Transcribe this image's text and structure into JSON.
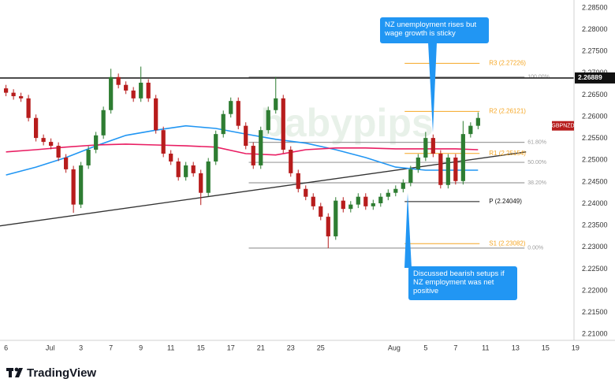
{
  "chart_data": {
    "type": "candlestick",
    "symbol": "GBPNZD",
    "watermark": "babypips",
    "footer": "TradingView",
    "up_color": "#2e7d32",
    "down_color": "#b71c1c",
    "x": [
      0,
      0.5,
      1,
      1.5,
      2,
      2.5,
      3,
      3.5,
      4,
      4.5,
      5,
      5.5,
      6,
      6.5,
      7,
      7.5,
      8,
      8.5,
      9,
      9.5,
      10,
      10.5,
      11,
      11.5,
      12,
      12.5,
      13,
      13.5,
      14,
      14.5,
      15,
      15.5,
      16,
      16.5,
      17,
      17.5,
      18,
      18.5,
      19,
      19.5,
      20,
      20.5,
      21,
      21.5,
      22,
      22.5,
      23,
      23.5,
      24,
      24.5,
      25,
      25.5,
      26,
      26.5,
      27,
      27.5,
      28,
      28.5,
      29,
      29.5,
      30,
      30.5,
      31,
      31.5
    ],
    "open": [
      2.2665,
      2.2655,
      2.2647,
      2.2642,
      2.2597,
      2.2551,
      2.2542,
      2.2533,
      2.2506,
      2.2479,
      2.2398,
      2.2488,
      2.2524,
      2.2557,
      2.2615,
      2.2691,
      2.2673,
      2.266,
      2.2642,
      2.2678,
      2.2642,
      2.2569,
      2.2515,
      2.2497,
      2.2461,
      2.2488,
      2.247,
      2.2425,
      2.2497,
      2.256,
      2.2606,
      2.2636,
      2.2579,
      2.2533,
      2.2488,
      2.2569,
      2.2615,
      2.2642,
      2.2524,
      2.247,
      2.2434,
      2.2416,
      2.2394,
      2.237,
      2.2325,
      2.2407,
      2.2388,
      2.2398,
      2.2416,
      2.2394,
      2.2401,
      2.2416,
      2.2425,
      2.2434,
      2.2448,
      2.2479,
      2.2506,
      2.2551,
      2.2515,
      2.2443,
      2.2506,
      2.2452,
      2.256,
      2.2579
    ],
    "high": [
      2.2673,
      2.2663,
      2.2655,
      2.265,
      2.2605,
      2.2559,
      2.255,
      2.2541,
      2.2514,
      2.2487,
      2.2496,
      2.2532,
      2.2565,
      2.2623,
      2.271,
      2.2699,
      2.2681,
      2.2668,
      2.2715,
      2.2686,
      2.265,
      2.2577,
      2.2523,
      2.2505,
      2.2496,
      2.2496,
      2.2478,
      2.2505,
      2.2568,
      2.2614,
      2.2644,
      2.2644,
      2.2587,
      2.2541,
      2.2577,
      2.2623,
      2.2691,
      2.265,
      2.2532,
      2.2478,
      2.2442,
      2.2424,
      2.2402,
      2.2378,
      2.2415,
      2.2415,
      2.2406,
      2.2424,
      2.2424,
      2.2409,
      2.2424,
      2.2433,
      2.2442,
      2.2456,
      2.2487,
      2.2514,
      2.2565,
      2.2559,
      2.2523,
      2.2514,
      2.2514,
      2.259,
      2.2587,
      2.261
    ],
    "low": [
      2.2647,
      2.2639,
      2.2634,
      2.2589,
      2.2543,
      2.2534,
      2.2525,
      2.2498,
      2.2471,
      2.2379,
      2.239,
      2.248,
      2.2516,
      2.2549,
      2.2607,
      2.2665,
      2.2652,
      2.2634,
      2.2634,
      2.2634,
      2.2561,
      2.2507,
      2.2489,
      2.2453,
      2.2453,
      2.2462,
      2.2397,
      2.2417,
      2.2489,
      2.2552,
      2.2598,
      2.2571,
      2.2525,
      2.248,
      2.248,
      2.2561,
      2.2607,
      2.2516,
      2.2462,
      2.2426,
      2.2408,
      2.2386,
      2.2362,
      2.2298,
      2.2317,
      2.238,
      2.238,
      2.239,
      2.2386,
      2.2386,
      2.2393,
      2.2408,
      2.2417,
      2.2426,
      2.244,
      2.2471,
      2.2498,
      2.2507,
      2.2435,
      2.2435,
      2.2444,
      2.2444,
      2.2552,
      2.2571
    ],
    "close": [
      2.2655,
      2.2647,
      2.2642,
      2.2597,
      2.2551,
      2.2542,
      2.2533,
      2.2506,
      2.2479,
      2.2398,
      2.2488,
      2.2524,
      2.2557,
      2.2615,
      2.2691,
      2.2673,
      2.266,
      2.2642,
      2.2678,
      2.2642,
      2.2569,
      2.2515,
      2.2497,
      2.2461,
      2.2488,
      2.247,
      2.2425,
      2.2497,
      2.256,
      2.2606,
      2.2636,
      2.2579,
      2.2533,
      2.2488,
      2.2569,
      2.2615,
      2.2642,
      2.2524,
      2.247,
      2.2434,
      2.2416,
      2.2394,
      2.237,
      2.2325,
      2.2407,
      2.2388,
      2.2398,
      2.2416,
      2.2394,
      2.2401,
      2.2416,
      2.2425,
      2.2434,
      2.2448,
      2.2479,
      2.2506,
      2.2551,
      2.2515,
      2.2443,
      2.2506,
      2.2452,
      2.256,
      2.2579,
      2.2597
    ],
    "moving_averages": [
      {
        "color": "#2196f3",
        "x": [
          0,
          2,
          4,
          6,
          8,
          10,
          12,
          14,
          16,
          18,
          20,
          22,
          24,
          26,
          28,
          30,
          31.5
        ],
        "values": [
          2.2466,
          2.2484,
          2.2506,
          2.2533,
          2.2557,
          2.2569,
          2.2579,
          2.2573,
          2.256,
          2.2548,
          2.2539,
          2.2524,
          2.2506,
          2.2484,
          2.2477,
          2.2477,
          2.2477
        ]
      },
      {
        "color": "#e91e63",
        "x": [
          0,
          2,
          4,
          6,
          8,
          10,
          12,
          14,
          16,
          18,
          20,
          22,
          24,
          26,
          28,
          30,
          31.5
        ],
        "values": [
          2.2519,
          2.2524,
          2.253,
          2.2535,
          2.2537,
          2.2535,
          2.2533,
          2.253,
          2.2515,
          2.2512,
          2.2524,
          2.2528,
          2.2528,
          2.2526,
          2.2526,
          2.2526,
          2.2524
        ]
      }
    ],
    "trendline": {
      "color": "#333333",
      "x": [
        -0.4,
        34.7
      ],
      "values": [
        2.2349,
        2.2519
      ]
    },
    "horizontal_line": {
      "value": 2.26889,
      "color": "#111111"
    },
    "fibonacci": {
      "color": "#9e9e9e",
      "x": [
        16.2,
        34.6
      ],
      "levels": [
        {
          "value": 2.2691,
          "label": "100.00%"
        },
        {
          "value": 2.2541,
          "label": "61.80%"
        },
        {
          "value": 2.2495,
          "label": "50.00%"
        },
        {
          "value": 2.2448,
          "label": "38.20%"
        },
        {
          "value": 2.2298,
          "label": "0.00%"
        }
      ]
    },
    "pivots": {
      "x": [
        26.6,
        31.6
      ],
      "levels": [
        {
          "value": 2.27226,
          "label": "R3 (2.27226)",
          "color": "#f5a623"
        },
        {
          "value": 2.26121,
          "label": "R2 (2.26121)",
          "color": "#f5a623"
        },
        {
          "value": 2.25154,
          "label": "R1 (2.25154)",
          "color": "#f5a623"
        },
        {
          "value": 2.24049,
          "label": "P (2.24049)",
          "color": "#111111"
        },
        {
          "value": 2.23082,
          "label": "S1 (2.23082)",
          "color": "#f5a623"
        }
      ]
    },
    "annotations": [
      "NZ unemployment rises but wage growth is sticky",
      "Discussed bearish setups if NZ employment was net positive"
    ],
    "xlim": [
      -0.4,
      37.9
    ],
    "ylim": [
      2.2086,
      2.2868
    ],
    "xticks": [
      {
        "value": 0,
        "label": "6"
      },
      {
        "value": 2.95,
        "label": "Jul"
      },
      {
        "value": 5,
        "label": "3"
      },
      {
        "value": 7,
        "label": "7"
      },
      {
        "value": 9,
        "label": "9"
      },
      {
        "value": 11,
        "label": "11"
      },
      {
        "value": 13,
        "label": "15"
      },
      {
        "value": 15,
        "label": "17"
      },
      {
        "value": 17,
        "label": "21"
      },
      {
        "value": 19,
        "label": "23"
      },
      {
        "value": 21,
        "label": "25"
      },
      {
        "value": 25.9,
        "label": "Aug"
      },
      {
        "value": 28,
        "label": "5"
      },
      {
        "value": 30,
        "label": "7"
      },
      {
        "value": 32,
        "label": "11"
      },
      {
        "value": 34,
        "label": "13"
      },
      {
        "value": 36,
        "label": "15"
      },
      {
        "value": 38,
        "label": "19"
      }
    ],
    "yticks": [
      {
        "value": 2.285,
        "label": "2.28500"
      },
      {
        "value": 2.28,
        "label": "2.28000"
      },
      {
        "value": 2.275,
        "label": "2.27500"
      },
      {
        "value": 2.27,
        "label": "2.27000"
      },
      {
        "value": 2.265,
        "label": "2.26500"
      },
      {
        "value": 2.26,
        "label": "2.26000"
      },
      {
        "value": 2.255,
        "label": "2.25500"
      },
      {
        "value": 2.25,
        "label": "2.25000"
      },
      {
        "value": 2.245,
        "label": "2.24500"
      },
      {
        "value": 2.24,
        "label": "2.24000"
      },
      {
        "value": 2.235,
        "label": "2.23500"
      },
      {
        "value": 2.23,
        "label": "2.23000"
      },
      {
        "value": 2.225,
        "label": "2.22500"
      },
      {
        "value": 2.22,
        "label": "2.22000"
      },
      {
        "value": 2.215,
        "label": "2.21500"
      },
      {
        "value": 2.21,
        "label": "2.21000"
      }
    ]
  }
}
